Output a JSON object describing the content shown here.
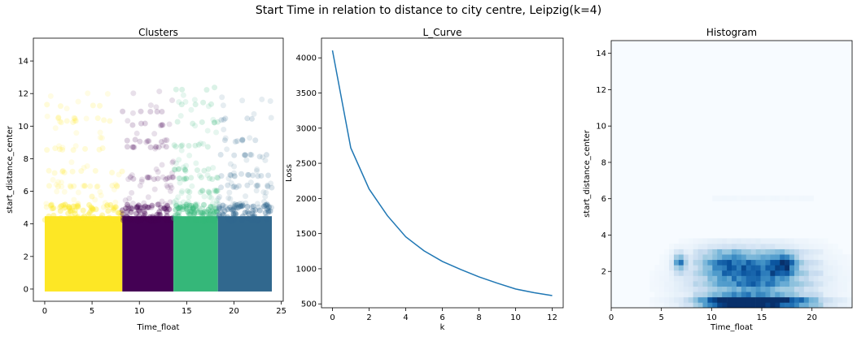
{
  "figure": {
    "suptitle": "Start Time in relation to distance to city centre, Leipzig(k=4)"
  },
  "chart_data": [
    {
      "type": "scatter",
      "title": "Clusters",
      "xlabel": "Time_float",
      "ylabel": "start_distance_center",
      "xlim": [
        -1.2,
        25.2
      ],
      "ylim": [
        -0.75,
        15.4
      ],
      "xticks": [
        0,
        5,
        10,
        15,
        20,
        25
      ],
      "yticks": [
        0,
        2,
        4,
        6,
        8,
        10,
        12,
        14
      ],
      "grid": false,
      "legend": "none",
      "clusters": [
        {
          "color": "#fde725",
          "x_range": [
            0,
            8.2
          ],
          "dense_ymax": 5.2,
          "bands": [
            5.0,
            6.3,
            7.2,
            8.6,
            10.3,
            10.5,
            11.3
          ]
        },
        {
          "color": "#440154",
          "x_range": [
            8.2,
            13.6
          ],
          "dense_ymax": 5.2,
          "bands": [
            5.0,
            6.8,
            8.7,
            9.1,
            10.1,
            10.9
          ]
        },
        {
          "color": "#35b779",
          "x_range": [
            13.6,
            18.3
          ],
          "dense_ymax": 5.2,
          "bands": [
            5.0,
            6.0,
            6.8,
            7.3,
            8.8,
            10.2,
            11.4,
            12.3
          ]
        },
        {
          "color": "#31688e",
          "x_range": [
            18.3,
            24.0
          ],
          "dense_ymax": 5.2,
          "bands": [
            5.0,
            6.3,
            7.0,
            8.2,
            9.1,
            10.4
          ]
        }
      ]
    },
    {
      "type": "line",
      "title": "L_Curve",
      "xlabel": "k",
      "ylabel": "Loss",
      "x": [
        0,
        1,
        2,
        3,
        4,
        5,
        6,
        7,
        8,
        9,
        10,
        11,
        12
      ],
      "y": [
        4105,
        2720,
        2135,
        1755,
        1455,
        1255,
        1105,
        990,
        885,
        795,
        712,
        660,
        618
      ],
      "xlim": [
        -0.6,
        12.6
      ],
      "ylim": [
        445,
        4280
      ],
      "xticks": [
        0,
        2,
        4,
        6,
        8,
        10,
        12
      ],
      "yticks": [
        500,
        1000,
        1500,
        2000,
        2500,
        3000,
        3500,
        4000
      ],
      "color": "#1f77b4",
      "grid": false
    },
    {
      "type": "heatmap",
      "title": "Histogram",
      "xlabel": "Time_float",
      "ylabel": "start_distance_center",
      "xlim": [
        0,
        24
      ],
      "ylim": [
        0,
        14.7
      ],
      "xticks": [
        0,
        5,
        10,
        15,
        20
      ],
      "yticks": [
        2,
        4,
        6,
        8,
        10,
        12,
        14
      ],
      "colormap": "Blues",
      "hotspots": [
        {
          "x": 15,
          "y": 0.35,
          "w": 4.5,
          "h": 0.25,
          "v": 1.0
        },
        {
          "x": 12,
          "y": 0.35,
          "w": 3.0,
          "h": 0.3,
          "v": 0.6
        },
        {
          "x": 6.8,
          "y": 2.5,
          "w": 0.6,
          "h": 0.5,
          "v": 0.6
        },
        {
          "x": 17.2,
          "y": 2.4,
          "w": 1.2,
          "h": 0.6,
          "v": 0.55
        },
        {
          "x": 14.5,
          "y": 2.3,
          "w": 3.5,
          "h": 0.8,
          "v": 0.4
        },
        {
          "x": 11.0,
          "y": 2.5,
          "w": 2.5,
          "h": 0.8,
          "v": 0.35
        },
        {
          "x": 14,
          "y": 1.3,
          "w": 5.0,
          "h": 0.9,
          "v": 0.35
        }
      ]
    }
  ]
}
